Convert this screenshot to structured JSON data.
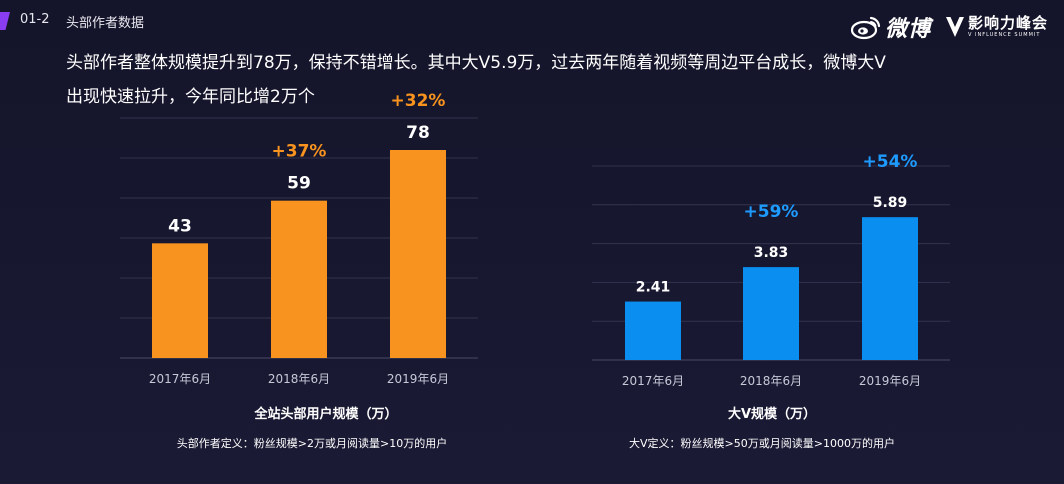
{
  "header": {
    "section_no": "01-2",
    "section_title": "头部作者数据",
    "logo_weibo_text": "微博",
    "logo_v_cn": "影响力峰会",
    "logo_v_en": "V INFLUENCE SUMMIT"
  },
  "headline": {
    "line1": "头部作者整体规模提升到78万，保持不错增长。其中大V5.9万，过去两年随着视频等周边平台成长，微博大V",
    "line2": "出现快速拉升，今年同比增2万个"
  },
  "colors": {
    "left_bars": "#f7931e",
    "right_bars": "#0a8ff0",
    "left_growth": "#f7931e",
    "right_growth": "#1e9bff",
    "accent_tag": "#8a3cf0"
  },
  "chart_data": [
    {
      "type": "bar",
      "title": "全站头部用户规模（万）",
      "note": "头部作者定义：粉丝规模>2万或月阅读量>10万的用户",
      "categories": [
        "2017年6月",
        "2018年6月",
        "2019年6月"
      ],
      "values": [
        43,
        59,
        78
      ],
      "value_labels": [
        "43",
        "59",
        "78"
      ],
      "growth_labels": [
        "",
        "+37%",
        "+32%"
      ],
      "ylim": [
        0,
        90
      ],
      "grid": true
    },
    {
      "type": "bar",
      "title": "大V规模（万）",
      "note": "大V定义：粉丝规模>50万或月阅读量>1000万的用户",
      "categories": [
        "2017年6月",
        "2018年6月",
        "2019年6月"
      ],
      "values": [
        2.41,
        3.83,
        5.89
      ],
      "value_labels": [
        "2.41",
        "3.83",
        "5.89"
      ],
      "growth_labels": [
        "",
        "+59%",
        "+54%"
      ],
      "ylim": [
        0,
        8
      ],
      "grid": true
    }
  ]
}
